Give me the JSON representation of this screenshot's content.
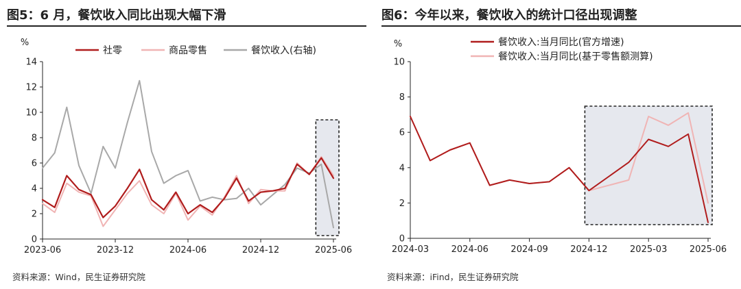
{
  "chart_data": [
    {
      "type": "line",
      "title": "图5：6 月，餐饮收入同比出现大幅下滑",
      "source": "资料来源：Wind，民生证券研究院",
      "ylabel": "%",
      "ylim": [
        0,
        14
      ],
      "yticks": [
        0,
        2,
        4,
        6,
        8,
        10,
        12,
        14
      ],
      "x": [
        "2023-06",
        "2023-07",
        "2023-08",
        "2023-09",
        "2023-10",
        "2023-11",
        "2023-12",
        "2024-01",
        "2024-02",
        "2024-03",
        "2024-04",
        "2024-05",
        "2024-06",
        "2024-07",
        "2024-08",
        "2024-09",
        "2024-10",
        "2024-11",
        "2024-12",
        "2025-01",
        "2025-02",
        "2025-03",
        "2025-04",
        "2025-05",
        "2025-06"
      ],
      "xtick_labels": [
        "2023-06",
        "2023-12",
        "2024-06",
        "2024-12",
        "2025-06"
      ],
      "legend_position": "top",
      "highlight_box": {
        "x_start": "2025-05",
        "x_end": "2025-06",
        "style": "dashed"
      },
      "series": [
        {
          "name": "社零",
          "color": "#b01c1c",
          "width": 2.2,
          "values": [
            3.1,
            2.5,
            5.0,
            3.9,
            3.5,
            1.7,
            2.6,
            4.0,
            5.5,
            3.1,
            2.3,
            3.7,
            2.0,
            2.7,
            2.1,
            3.2,
            4.8,
            3.0,
            3.7,
            3.8,
            4.0,
            5.9,
            5.1,
            6.4,
            4.8
          ]
        },
        {
          "name": "商品零售",
          "color": "#f0b4b4",
          "width": 2.0,
          "values": [
            2.8,
            2.1,
            4.4,
            3.7,
            3.4,
            1.0,
            2.3,
            3.6,
            4.6,
            2.7,
            2.0,
            3.6,
            1.5,
            2.6,
            1.9,
            3.3,
            5.0,
            2.8,
            3.9,
            3.8,
            3.8,
            6.0,
            5.1,
            6.5,
            5.0
          ]
        },
        {
          "name": "餐饮收入(右轴)",
          "color": "#a8a8a8",
          "width": 2.0,
          "values": [
            5.6,
            6.8,
            10.4,
            5.8,
            3.6,
            7.3,
            5.6,
            9.2,
            12.5,
            6.9,
            4.4,
            5.0,
            5.4,
            3.0,
            3.3,
            3.1,
            3.2,
            4.0,
            2.7,
            3.5,
            4.3,
            5.6,
            5.2,
            5.9,
            0.9
          ]
        }
      ]
    },
    {
      "type": "line",
      "title": "图6：今年以来，餐饮收入的统计口径出现调整",
      "source": "资料来源：iFind，民生证券研究院",
      "ylabel": "%",
      "ylim": [
        0,
        10
      ],
      "yticks": [
        0,
        2,
        4,
        6,
        8,
        10
      ],
      "x": [
        "2024-03",
        "2024-04",
        "2024-05",
        "2024-06",
        "2024-07",
        "2024-08",
        "2024-09",
        "2024-10",
        "2024-11",
        "2024-12",
        "2025-01",
        "2025-02",
        "2025-03",
        "2025-04",
        "2025-05",
        "2025-06"
      ],
      "xtick_labels": [
        "2024-03",
        "2024-06",
        "2024-09",
        "2024-12",
        "2025-03",
        "2025-06"
      ],
      "legend_position": "top",
      "highlight_box": {
        "x_start": "2024-12",
        "x_end": "2025-06",
        "style": "dashed"
      },
      "series": [
        {
          "name": "餐饮收入:当月同比(官方增速)",
          "color": "#b01c1c",
          "width": 2.0,
          "values": [
            6.9,
            4.4,
            5.0,
            5.4,
            3.0,
            3.3,
            3.1,
            3.2,
            4.0,
            2.7,
            null,
            4.3,
            5.6,
            5.2,
            5.9,
            0.9
          ]
        },
        {
          "name": "餐饮收入:当月同比(基于零售额测算)",
          "color": "#f0b4b4",
          "width": 2.0,
          "values": [
            6.9,
            4.4,
            5.0,
            5.4,
            3.0,
            3.3,
            3.1,
            3.2,
            4.0,
            2.7,
            null,
            3.3,
            6.9,
            6.4,
            7.1,
            2.0
          ]
        }
      ]
    }
  ]
}
